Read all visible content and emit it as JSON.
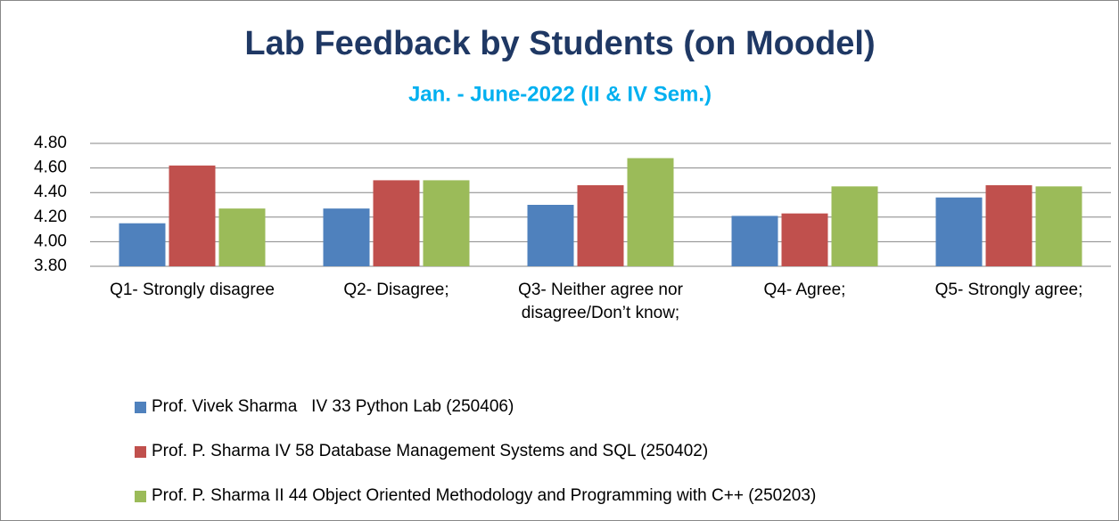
{
  "chart_data": {
    "type": "bar",
    "title": "Lab Feedback by Students (on Moodel)",
    "subtitle": "Jan. - June-2022 (II & IV Sem.)",
    "categories": [
      "Q1- Strongly disagree",
      "Q2- Disagree;",
      "Q3- Neither agree nor disagree/Don’t know;",
      "Q4- Agree;",
      "Q5- Strongly agree;"
    ],
    "series": [
      {
        "name": "Prof. Vivek Sharma   IV 33 Python Lab (250406)",
        "color": "#4f81bd",
        "values": [
          4.15,
          4.27,
          4.3,
          4.21,
          4.36
        ]
      },
      {
        "name": "Prof. P. Sharma IV 58 Database Management Systems and SQL (250402)",
        "color": "#c0504d",
        "values": [
          4.62,
          4.5,
          4.46,
          4.23,
          4.46
        ]
      },
      {
        "name": "Prof. P. Sharma II 44 Object Oriented Methodology and Programming with C++ (250203)",
        "color": "#9bbb59",
        "values": [
          4.27,
          4.5,
          4.68,
          4.45,
          4.45
        ]
      }
    ],
    "ylim": [
      3.8,
      4.8
    ],
    "yticks": [
      {
        "value": 3.8,
        "label": "3.80"
      },
      {
        "value": 4.0,
        "label": "4.00"
      },
      {
        "value": 4.2,
        "label": "4.20"
      },
      {
        "value": 4.4,
        "label": "4.40"
      },
      {
        "value": 4.6,
        "label": "4.60"
      },
      {
        "value": 4.8,
        "label": "4.80"
      }
    ],
    "grid": true,
    "legend": "bottom"
  }
}
